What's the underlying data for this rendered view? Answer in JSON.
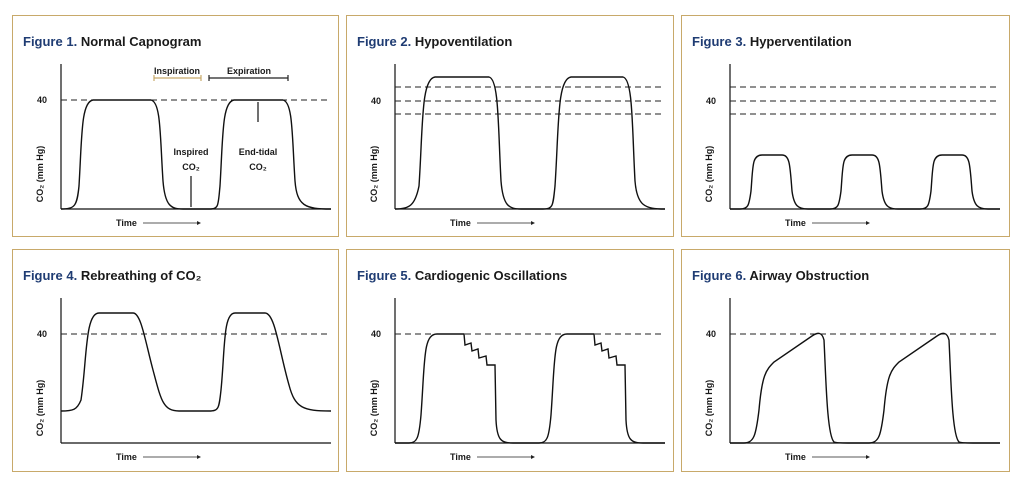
{
  "colors": {
    "border": "#c8a96a",
    "figure_number": "#1f3c73",
    "inspiration_bracket": "#c8a96a"
  },
  "axis": {
    "y_label": "CO₂ (mm Hg)",
    "y_tick": "40",
    "x_label": "Time"
  },
  "figures": [
    {
      "number": "Figure 1.",
      "title": "Normal Capnogram",
      "key": "normal",
      "annotations": {
        "inspiration": "Inspiration",
        "expiration": "Expiration",
        "inspired_1": "Inspired",
        "inspired_2": "CO₂",
        "end_tidal_1": "End-tidal",
        "end_tidal_2": "CO₂"
      }
    },
    {
      "number": "Figure 2.",
      "title": "Hypoventilation",
      "key": "hypo"
    },
    {
      "number": "Figure 3.",
      "title": "Hyperventilation",
      "key": "hyper"
    },
    {
      "number": "Figure 4.",
      "title": "Rebreathing of CO₂",
      "key": "rebreathing"
    },
    {
      "number": "Figure 5.",
      "title": "Cardiogenic Oscillations",
      "key": "cardiogenic"
    },
    {
      "number": "Figure 6.",
      "title": "Airway Obstruction",
      "key": "obstruction"
    }
  ]
}
